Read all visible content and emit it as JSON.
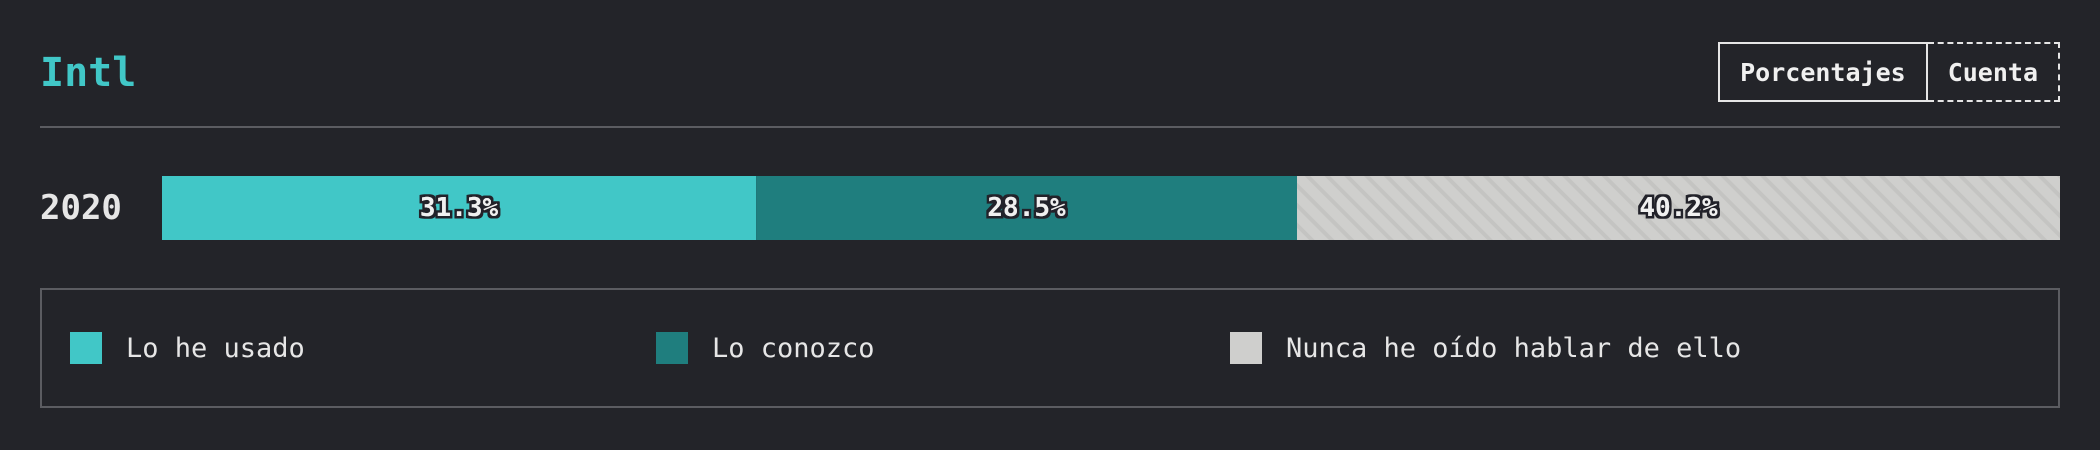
{
  "header": {
    "title": "Intl",
    "toggle": {
      "percent_label": "Porcentajes",
      "count_label": "Cuenta",
      "active": "percent"
    }
  },
  "chart_data": {
    "type": "bar",
    "orientation": "horizontal",
    "stacked": true,
    "categories": [
      "2020"
    ],
    "series": [
      {
        "name": "Lo he usado",
        "values": [
          31.3
        ],
        "color": "#41c7c7"
      },
      {
        "name": "Lo conozco",
        "values": [
          28.5
        ],
        "color": "#1f7e7e"
      },
      {
        "name": "Nunca he oído hablar de ello",
        "values": [
          40.2
        ],
        "color": "#cfcfcd"
      }
    ],
    "data_labels": [
      "31.3%",
      "28.5%",
      "40.2%"
    ],
    "xlim": [
      0,
      100
    ],
    "grid": false,
    "legend_position": "bottom"
  },
  "legend": {
    "items": [
      {
        "label": "Lo he usado",
        "color": "#41c7c7"
      },
      {
        "label": "Lo conozco",
        "color": "#1f7e7e"
      },
      {
        "label": "Nunca he oído hablar de ello",
        "color": "#cfcfcd"
      }
    ]
  }
}
